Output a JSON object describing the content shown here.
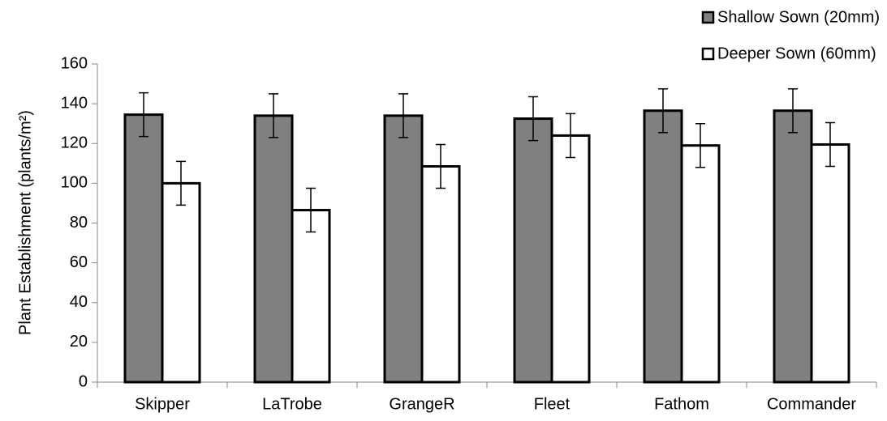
{
  "chart_data": {
    "type": "bar",
    "y_label": "Plant Establishment (plants/m²)",
    "categories": [
      "Skipper",
      "LaTrobe",
      "GrangeR",
      "Fleet",
      "Fathom",
      "Commander"
    ],
    "series": [
      {
        "name": "Shallow Sown (20mm)",
        "color": "#808080",
        "values": [
          134.5,
          134,
          134,
          132.5,
          136.5,
          136.5
        ],
        "errors": [
          11,
          11,
          11,
          11,
          11,
          11
        ]
      },
      {
        "name": "Deeper Sown (60mm)",
        "color": "#ffffff",
        "values": [
          100,
          86.5,
          108.5,
          124,
          119,
          119.5
        ],
        "errors": [
          11,
          11,
          11,
          11,
          11,
          11
        ]
      }
    ],
    "ylim": [
      0,
      160
    ],
    "yticks": [
      0,
      20,
      40,
      60,
      80,
      100,
      120,
      140,
      160
    ],
    "legend": "top-right"
  }
}
